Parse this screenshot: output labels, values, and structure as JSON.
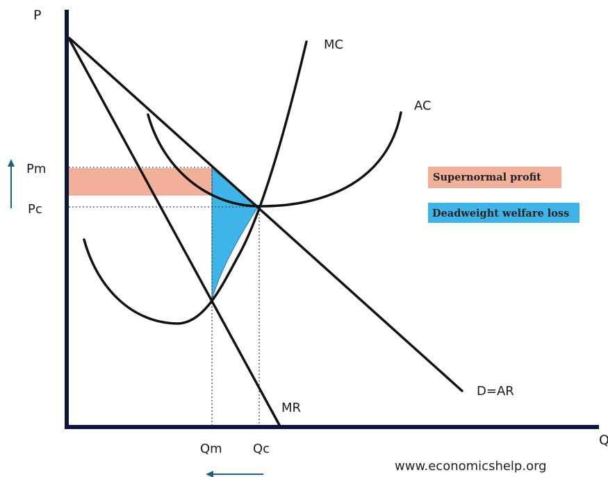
{
  "axes": {
    "y_label": "P",
    "x_label": "Q"
  },
  "curves": {
    "mc": "MC",
    "ac": "AC",
    "demand": "D=AR",
    "mr": "MR"
  },
  "prices": {
    "monopoly": "Pm",
    "competitive": "Pc"
  },
  "quantities": {
    "monopoly": "Qm",
    "competitive": "Qc"
  },
  "legend": [
    {
      "label": "Supernormal profit",
      "color": "#f2b09a"
    },
    {
      "label": "Deadweight welfare loss",
      "color": "#3fb4e8"
    }
  ],
  "arrows": {
    "price_direction": "up",
    "quantity_direction": "left",
    "color": "#1f5f80"
  },
  "source": "www.economicshelp.org"
}
